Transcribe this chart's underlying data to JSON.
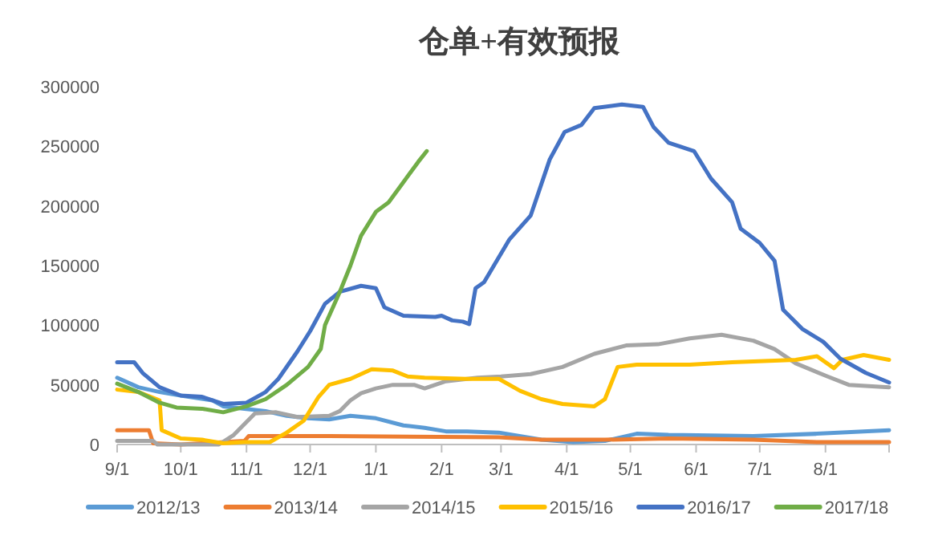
{
  "chart_data": {
    "type": "line",
    "title": "仓单+有效预报",
    "xlim": [
      "2016-09-01",
      "2017-08-31"
    ],
    "ylim": [
      0,
      300000
    ],
    "xticks": [
      {
        "value": "2016-09-01",
        "label": "9/1"
      },
      {
        "value": "2016-10-01",
        "label": "10/1"
      },
      {
        "value": "2016-11-01",
        "label": "11/1"
      },
      {
        "value": "2016-12-01",
        "label": "12/1"
      },
      {
        "value": "2017-01-01",
        "label": "1/1"
      },
      {
        "value": "2017-02-01",
        "label": "2/1"
      },
      {
        "value": "2017-03-01",
        "label": "3/1"
      },
      {
        "value": "2017-04-01",
        "label": "4/1"
      },
      {
        "value": "2017-05-01",
        "label": "5/1"
      },
      {
        "value": "2017-06-01",
        "label": "6/1"
      },
      {
        "value": "2017-07-01",
        "label": "7/1"
      },
      {
        "value": "2017-08-01",
        "label": "8/1"
      }
    ],
    "yticks": [
      0,
      50000,
      100000,
      150000,
      200000,
      250000,
      300000
    ],
    "legend": "bottom",
    "series": [
      {
        "name": "2012/13",
        "color": "#5b9bd5",
        "x": [
          "2016-09-01",
          "2016-09-11",
          "2016-09-21",
          "2016-10-01",
          "2016-10-16",
          "2016-10-21",
          "2016-10-31",
          "2016-11-10",
          "2016-11-20",
          "2016-11-30",
          "2016-12-10",
          "2016-12-20",
          "2017-01-01",
          "2017-01-14",
          "2017-01-24",
          "2017-02-03",
          "2017-02-13",
          "2017-02-28",
          "2017-03-20",
          "2017-04-04",
          "2017-04-19",
          "2017-05-04",
          "2017-05-19",
          "2017-06-28",
          "2017-07-28",
          "2017-08-31"
        ],
        "values": [
          56000,
          48000,
          44000,
          41000,
          37000,
          32000,
          30000,
          28000,
          24000,
          22000,
          21000,
          24000,
          22000,
          16000,
          14000,
          11000,
          11000,
          10000,
          4000,
          2000,
          3000,
          9000,
          8000,
          7000,
          9000,
          12000
        ]
      },
      {
        "name": "2013/14",
        "color": "#ed7d31",
        "x": [
          "2016-09-01",
          "2016-09-16",
          "2016-09-18",
          "2016-10-01",
          "2016-10-31",
          "2016-11-02",
          "2016-12-10",
          "2017-02-28",
          "2017-03-20",
          "2017-04-19",
          "2017-05-19",
          "2017-06-28",
          "2017-07-28",
          "2017-08-31"
        ],
        "values": [
          12000,
          12000,
          1000,
          0,
          3000,
          7000,
          7000,
          6000,
          4000,
          4000,
          5000,
          4000,
          2000,
          2000
        ]
      },
      {
        "name": "2014/15",
        "color": "#a5a5a5",
        "x": [
          "2016-09-01",
          "2016-09-18",
          "2016-09-20",
          "2016-10-19",
          "2016-10-26",
          "2016-11-05",
          "2016-11-15",
          "2016-11-25",
          "2016-12-10",
          "2016-12-15",
          "2016-12-20",
          "2016-12-25",
          "2017-01-01",
          "2017-01-09",
          "2017-01-19",
          "2017-01-24",
          "2017-02-03",
          "2017-02-18",
          "2017-03-01",
          "2017-03-15",
          "2017-03-30",
          "2017-04-14",
          "2017-04-29",
          "2017-05-14",
          "2017-05-29",
          "2017-06-13",
          "2017-06-28",
          "2017-07-08",
          "2017-07-18",
          "2017-08-02",
          "2017-08-12",
          "2017-08-31"
        ],
        "values": [
          3000,
          3000,
          0,
          0,
          8000,
          26000,
          27000,
          23000,
          24000,
          28000,
          37000,
          43000,
          47000,
          50000,
          50000,
          47000,
          53000,
          56000,
          57000,
          59000,
          65000,
          76000,
          83000,
          84000,
          89000,
          92000,
          87000,
          80000,
          68000,
          57000,
          50000,
          48000
        ]
      },
      {
        "name": "2015/16",
        "color": "#ffc000",
        "x": [
          "2016-09-01",
          "2016-09-11",
          "2016-09-21",
          "2016-09-22",
          "2016-10-01",
          "2016-10-11",
          "2016-10-21",
          "2016-10-31",
          "2016-11-12",
          "2016-11-20",
          "2016-11-28",
          "2016-12-05",
          "2016-12-10",
          "2016-12-20",
          "2016-12-30",
          "2017-01-09",
          "2017-01-16",
          "2017-01-24",
          "2017-02-13",
          "2017-02-28",
          "2017-03-10",
          "2017-03-20",
          "2017-03-30",
          "2017-04-14",
          "2017-04-19",
          "2017-04-25",
          "2017-05-04",
          "2017-05-29",
          "2017-06-18",
          "2017-07-18",
          "2017-07-28",
          "2017-08-05",
          "2017-08-09",
          "2017-08-19",
          "2017-08-31"
        ],
        "values": [
          46000,
          44000,
          37000,
          12000,
          5000,
          4000,
          1000,
          2000,
          2000,
          10000,
          20000,
          40000,
          50000,
          55000,
          63000,
          62000,
          57000,
          56000,
          55000,
          55000,
          45000,
          38000,
          34000,
          32000,
          38000,
          65000,
          67000,
          67000,
          69000,
          71000,
          74000,
          64000,
          71000,
          75000,
          71000
        ]
      },
      {
        "name": "2016/17",
        "color": "#4472c4",
        "x": [
          "2016-09-01",
          "2016-09-09",
          "2016-09-13",
          "2016-09-21",
          "2016-10-01",
          "2016-10-11",
          "2016-10-21",
          "2016-11-01",
          "2016-11-10",
          "2016-11-16",
          "2016-11-25",
          "2016-12-01",
          "2016-12-08",
          "2016-12-15",
          "2016-12-25",
          "2017-01-01",
          "2017-01-05",
          "2017-01-14",
          "2017-01-29",
          "2017-02-01",
          "2017-02-06",
          "2017-02-11",
          "2017-02-14",
          "2017-02-17",
          "2017-02-21",
          "2017-03-05",
          "2017-03-15",
          "2017-03-24",
          "2017-03-31",
          "2017-04-08",
          "2017-04-14",
          "2017-04-27",
          "2017-05-07",
          "2017-05-12",
          "2017-05-19",
          "2017-05-31",
          "2017-06-08",
          "2017-06-18",
          "2017-06-22",
          "2017-07-01",
          "2017-07-08",
          "2017-07-12",
          "2017-07-21",
          "2017-07-31",
          "2017-08-08",
          "2017-08-20",
          "2017-08-31"
        ],
        "values": [
          69000,
          69000,
          60000,
          48000,
          41000,
          40000,
          34000,
          35000,
          44000,
          55000,
          78000,
          95000,
          118000,
          128000,
          133000,
          131000,
          115000,
          108000,
          107000,
          108000,
          104000,
          103000,
          101000,
          131000,
          136000,
          172000,
          192000,
          239000,
          262000,
          268000,
          282000,
          285000,
          283000,
          266000,
          253000,
          246000,
          223000,
          203000,
          181000,
          169000,
          154000,
          113000,
          97000,
          86000,
          72000,
          60000,
          52000
        ]
      },
      {
        "name": "2017/18",
        "color": "#70ad47",
        "x": [
          "2016-09-01",
          "2016-09-11",
          "2016-09-21",
          "2016-09-29",
          "2016-10-11",
          "2016-10-21",
          "2016-11-01",
          "2016-11-10",
          "2016-11-20",
          "2016-11-30",
          "2016-12-06",
          "2016-12-08",
          "2016-12-15",
          "2016-12-20",
          "2016-12-25",
          "2017-01-01",
          "2017-01-07",
          "2017-01-14",
          "2017-01-21",
          "2017-01-25"
        ],
        "values": [
          51000,
          44000,
          35000,
          31000,
          30000,
          27000,
          32000,
          38000,
          50000,
          65000,
          80000,
          100000,
          128000,
          150000,
          175000,
          195000,
          203000,
          220000,
          237000,
          246000
        ]
      }
    ]
  }
}
